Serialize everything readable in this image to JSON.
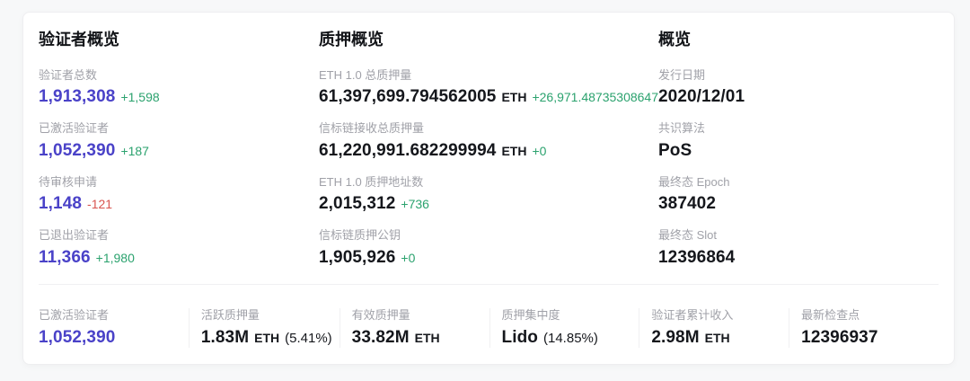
{
  "colors": {
    "accent": "#4a42c8",
    "up": "#2ba26e",
    "down": "#d8544f",
    "label": "#a0a1a8",
    "value": "#15171c"
  },
  "sections": [
    {
      "title": "验证者概览",
      "stats": [
        {
          "label": "验证者总数",
          "value": "1,913,308",
          "delta": "+1,598",
          "delta_dir": "up",
          "link": true
        },
        {
          "label": "已激活验证者",
          "value": "1,052,390",
          "delta": "+187",
          "delta_dir": "up",
          "link": true
        },
        {
          "label": "待审核申请",
          "value": "1,148",
          "delta": "-121",
          "delta_dir": "down",
          "link": true
        },
        {
          "label": "已退出验证者",
          "value": "11,366",
          "delta": "+1,980",
          "delta_dir": "up",
          "link": true
        }
      ]
    },
    {
      "title": "质押概览",
      "stats": [
        {
          "label": "ETH 1.0 总质押量",
          "value": "61,397,699.794562005",
          "suffix": "ETH",
          "delta": "+26,971.48735308647",
          "delta_dir": "up"
        },
        {
          "label": "信标链接收总质押量",
          "value": "61,220,991.682299994",
          "suffix": "ETH",
          "delta": "+0",
          "delta_dir": "up"
        },
        {
          "label": "ETH 1.0 质押地址数",
          "value": "2,015,312",
          "delta": "+736",
          "delta_dir": "up"
        },
        {
          "label": "信标链质押公钥",
          "value": "1,905,926",
          "delta": "+0",
          "delta_dir": "up"
        }
      ]
    },
    {
      "title": "概览",
      "stats": [
        {
          "label": "发行日期",
          "value": "2020/12/01"
        },
        {
          "label": "共识算法",
          "value": "PoS"
        },
        {
          "label": "最终态 Epoch",
          "value": "387402"
        },
        {
          "label": "最终态 Slot",
          "value": "12396864"
        }
      ]
    }
  ],
  "footer": [
    {
      "label": "已激活验证者",
      "value": "1,052,390",
      "link": true
    },
    {
      "label": "活跃质押量",
      "value": "1.83M",
      "suffix": "ETH",
      "note": "(5.41%)"
    },
    {
      "label": "有效质押量",
      "value": "33.82M",
      "suffix": "ETH"
    },
    {
      "label": "质押集中度",
      "value": "Lido",
      "note": "(14.85%)"
    },
    {
      "label": "验证者累计收入",
      "value": "2.98M",
      "suffix": "ETH"
    },
    {
      "label": "最新检查点",
      "value": "12396937"
    }
  ]
}
